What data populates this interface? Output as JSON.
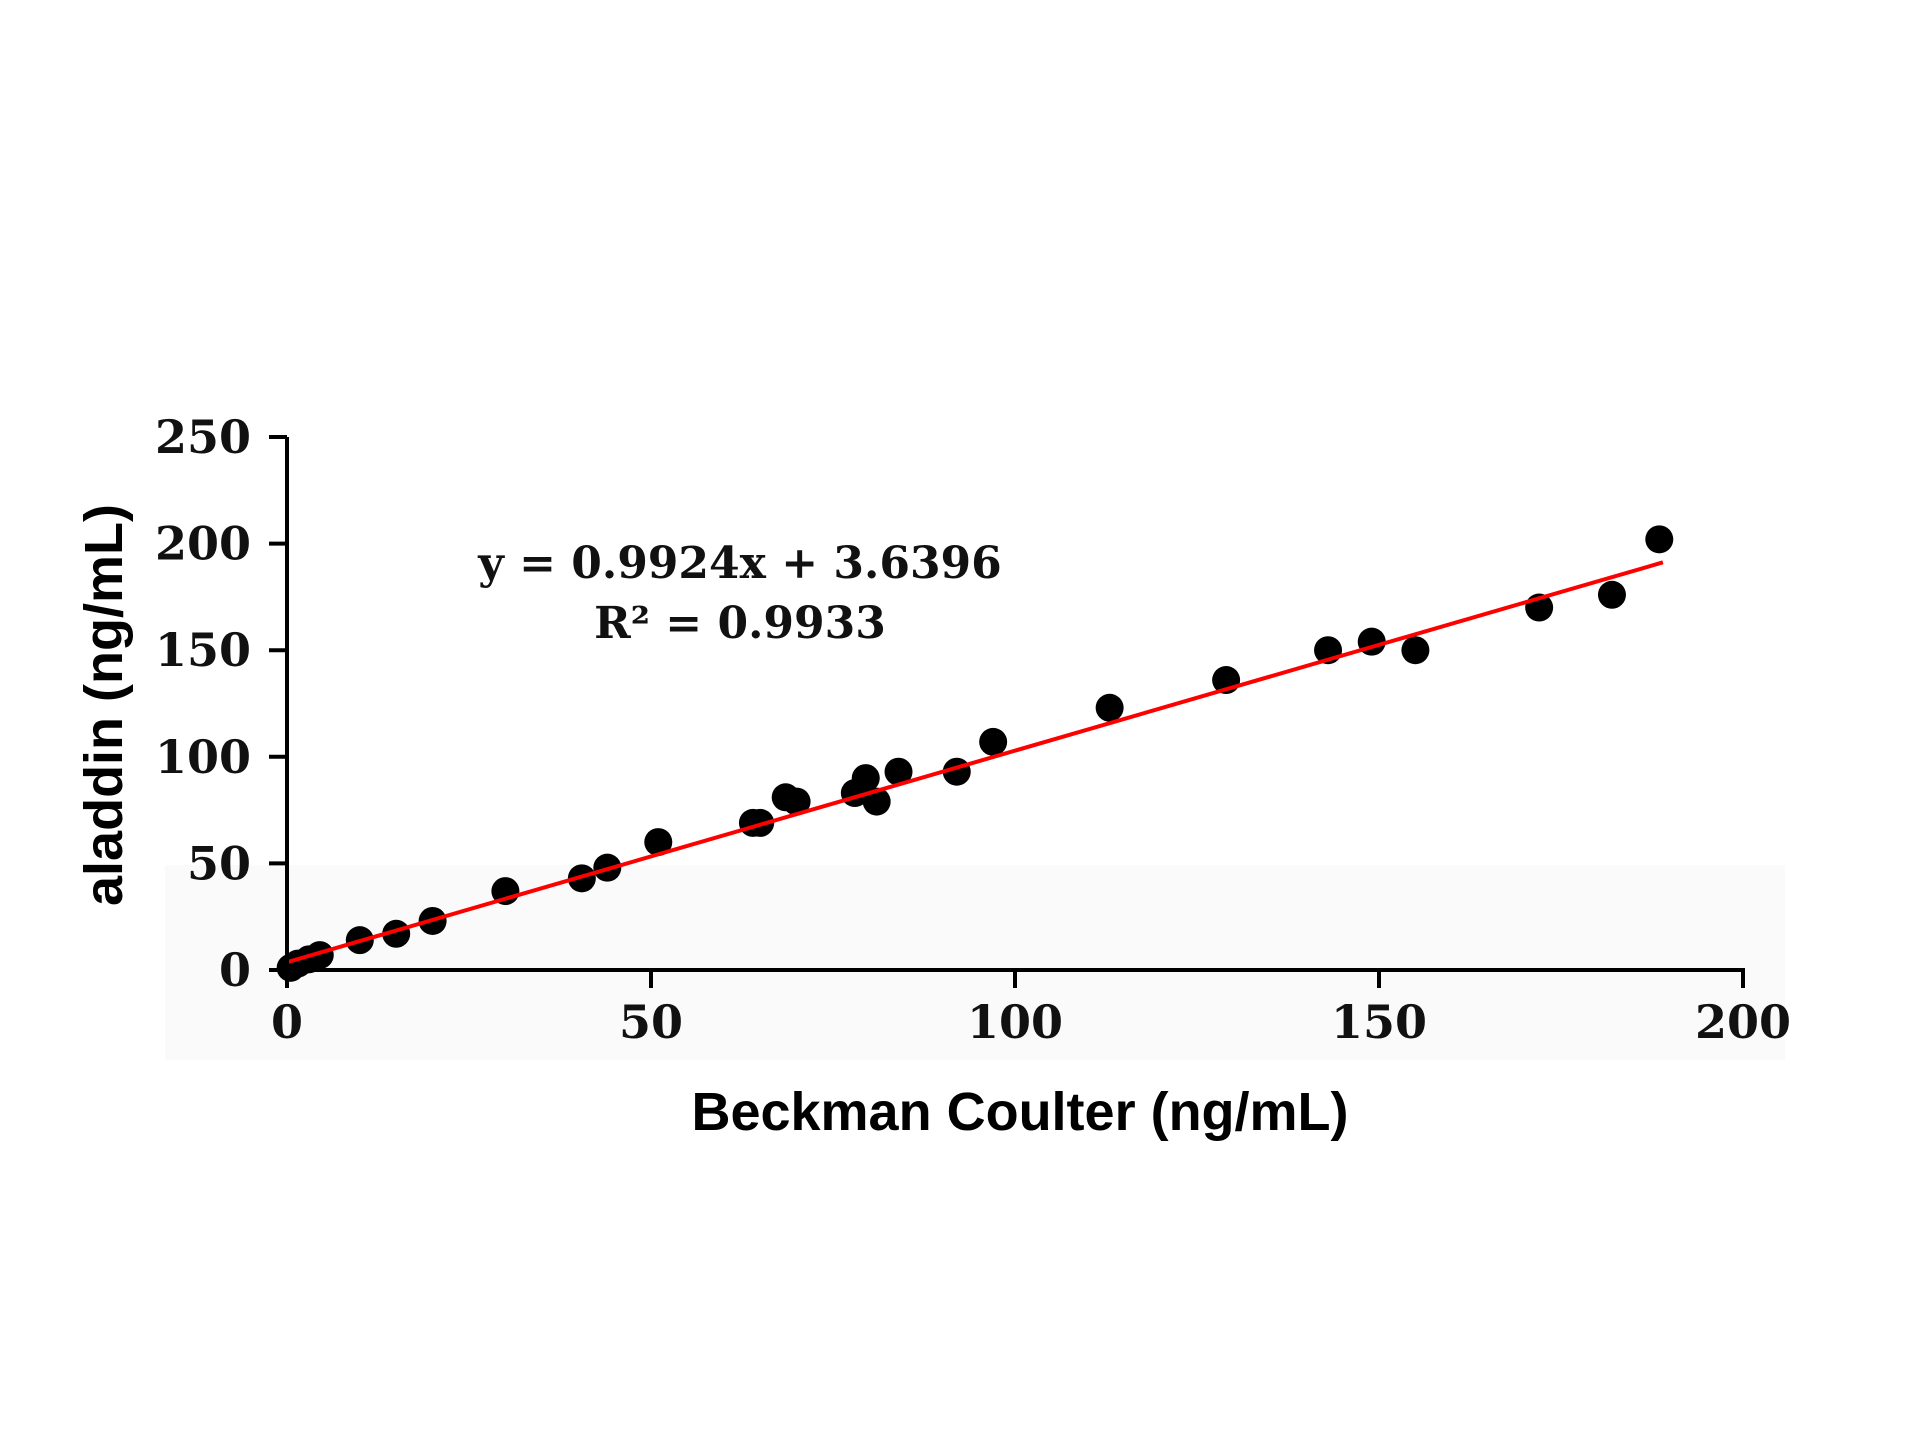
{
  "chart_data": {
    "type": "scatter",
    "xlabel": "Beckman Coulter (ng/mL)",
    "ylabel": "aladdin (ng/mL)",
    "xlim": [
      0,
      200
    ],
    "ylim": [
      0,
      250
    ],
    "x_ticks": [
      "0",
      "50",
      "100",
      "150",
      "200"
    ],
    "y_ticks": [
      "0",
      "50",
      "100",
      "150",
      "200",
      "250"
    ],
    "grid": false,
    "legend": "none",
    "colors": {
      "points": "#000000",
      "trendline": "#ff0000",
      "axes": "#000000"
    },
    "annotations": {
      "equation": "y = 0.9924x + 3.6396",
      "r_squared": "R² = 0.9933"
    },
    "trendline": {
      "slope": 0.9924,
      "intercept": 3.6396,
      "x_range": [
        0,
        189
      ]
    },
    "points": [
      {
        "x": 0.5,
        "y": 1
      },
      {
        "x": 1.5,
        "y": 3
      },
      {
        "x": 3,
        "y": 5
      },
      {
        "x": 4.5,
        "y": 7
      },
      {
        "x": 10,
        "y": 14
      },
      {
        "x": 15,
        "y": 17
      },
      {
        "x": 20,
        "y": 23
      },
      {
        "x": 30,
        "y": 37
      },
      {
        "x": 40.5,
        "y": 43
      },
      {
        "x": 44,
        "y": 48
      },
      {
        "x": 51,
        "y": 60
      },
      {
        "x": 64,
        "y": 69
      },
      {
        "x": 65,
        "y": 69
      },
      {
        "x": 68.5,
        "y": 81
      },
      {
        "x": 70,
        "y": 79
      },
      {
        "x": 78,
        "y": 83
      },
      {
        "x": 79.5,
        "y": 90
      },
      {
        "x": 81,
        "y": 79
      },
      {
        "x": 84,
        "y": 93
      },
      {
        "x": 92,
        "y": 93
      },
      {
        "x": 97,
        "y": 107
      },
      {
        "x": 113,
        "y": 123
      },
      {
        "x": 129,
        "y": 136
      },
      {
        "x": 143,
        "y": 150
      },
      {
        "x": 149,
        "y": 154
      },
      {
        "x": 155,
        "y": 150
      },
      {
        "x": 172,
        "y": 170
      },
      {
        "x": 182,
        "y": 176
      },
      {
        "x": 188.5,
        "y": 202
      }
    ]
  }
}
